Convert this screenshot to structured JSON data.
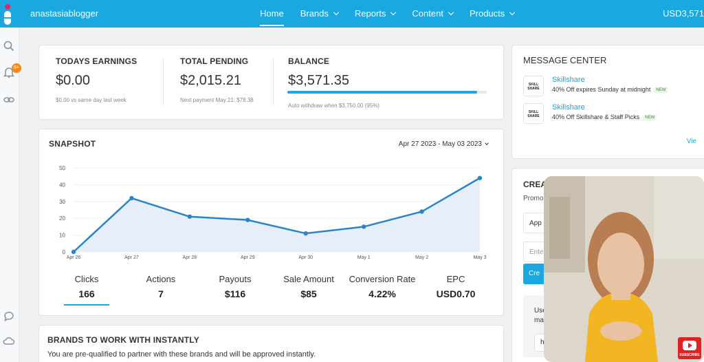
{
  "topbar": {
    "account": "anastasiablogger",
    "nav": [
      {
        "label": "Home",
        "active": true,
        "dropdown": false
      },
      {
        "label": "Brands",
        "active": false,
        "dropdown": true
      },
      {
        "label": "Reports",
        "active": false,
        "dropdown": true
      },
      {
        "label": "Content",
        "active": false,
        "dropdown": true
      },
      {
        "label": "Products",
        "active": false,
        "dropdown": true
      }
    ],
    "balance": "USD3,571"
  },
  "rail": {
    "notification_badge": "9+",
    "icons": [
      "search-icon",
      "bell-icon",
      "link-icon",
      "chat-icon",
      "cloud-icon"
    ]
  },
  "earnings": {
    "today": {
      "label": "TODAYS EARNINGS",
      "value": "$0.00",
      "sub": "$0.00 vs same day last week"
    },
    "pending": {
      "label": "TOTAL PENDING",
      "value": "$2,015.21",
      "sub": "Next payment May 21: $78.38"
    },
    "balance": {
      "label": "BALANCE",
      "value": "$3,571.35",
      "sub": "Auto withdraw when $3,750.00 (95%)",
      "progress": 0.95
    }
  },
  "snapshot": {
    "title": "SNAPSHOT",
    "date_range": "Apr 27 2023 - May 03 2023",
    "metrics": [
      {
        "label": "Clicks",
        "value": "166",
        "active": true
      },
      {
        "label": "Actions",
        "value": "7",
        "active": false
      },
      {
        "label": "Payouts",
        "value": "$116",
        "active": false
      },
      {
        "label": "Sale Amount",
        "value": "$85",
        "active": false
      },
      {
        "label": "Conversion Rate",
        "value": "4.22%",
        "active": false
      },
      {
        "label": "EPC",
        "value": "USD0.70",
        "active": false
      }
    ]
  },
  "chart_data": {
    "type": "area",
    "categories": [
      "Apr 26",
      "Apr 27",
      "Apr 28",
      "Apr 29",
      "Apr 30",
      "May 1",
      "May 2",
      "May 3"
    ],
    "values": [
      0,
      32,
      21,
      19,
      11,
      15,
      24,
      44
    ],
    "yticks": [
      0,
      10,
      20,
      30,
      40,
      50
    ],
    "ylim": [
      0,
      50
    ],
    "grid": true,
    "colors": {
      "line": "#2a84c8",
      "fill": "#e6eefa"
    }
  },
  "message_center": {
    "title": "MESSAGE CENTER",
    "messages": [
      {
        "brand": "Skillshare",
        "logo": "SKILL SHARE",
        "text": "40% Off expires Sunday at midnight",
        "tag": "NEW"
      },
      {
        "brand": "Skillshare",
        "logo": "SKILL SHARE",
        "text": "40% Off Skillshare & Staff Picks",
        "tag": "NEW"
      }
    ],
    "view_link": "Vie"
  },
  "create": {
    "title": "CREA",
    "sub": "Promo",
    "field1": "App",
    "field2_placeholder": "Ente",
    "button": "Cre",
    "inner_text": "Use ma",
    "inner_field": "h"
  },
  "brands": {
    "title": "BRANDS TO WORK WITH INSTANTLY",
    "subtitle": "You are pre-qualified to partner with these brands and will be approved instantly."
  },
  "video": {
    "subscribe": "SUBSCRIBE"
  }
}
